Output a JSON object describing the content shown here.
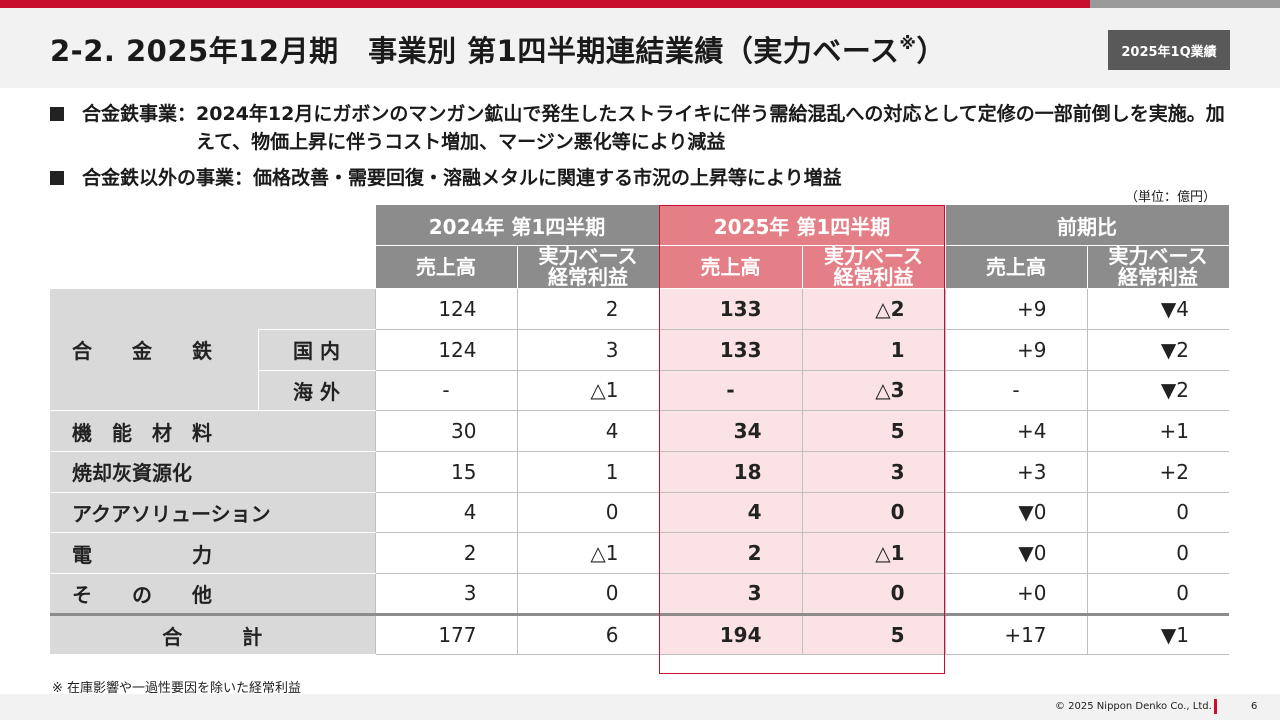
{
  "title": {
    "main": "2-2. 2025年12月期　事業別 第1四半期連結業績（実力ベース",
    "mark": "※",
    "close": "）"
  },
  "badge": "2025年1Q業績",
  "bullets": [
    {
      "label": "合金鉄事業：",
      "text": "2024年12月にガボンのマンガン鉱山で発生したストライキに伴う需給混乱への対応として定修の一部前倒しを実施。加えて、物価上昇に伴うコスト増加、マージン悪化等により減益"
    },
    {
      "label": "合金鉄以外の事業：",
      "text": "価格改善・需要回復・溶融メタルに関連する市況の上昇等により増益"
    }
  ],
  "unit": "（単位：億円）",
  "table": {
    "group_headers": [
      "2024年 第1四半期",
      "2025年 第1四半期",
      "前期比"
    ],
    "sub_headers": [
      "売上高",
      "実力ベース\n経常利益",
      "売上高",
      "実力ベース\n経常利益",
      "売上高",
      "実力ベース\n経常利益"
    ],
    "ferroalloy_label": "合　　金　　鉄",
    "rows": [
      {
        "sub": "",
        "values": [
          "124",
          "2",
          "133",
          "△2",
          "+9",
          "▼4"
        ]
      },
      {
        "sub": "国 内",
        "values": [
          "124",
          "3",
          "133",
          "1",
          "+9",
          "▼2"
        ]
      },
      {
        "sub": "海 外",
        "values": [
          "-",
          "△1",
          "-",
          "△3",
          "-",
          "▼2"
        ]
      },
      {
        "label": "機　能　材　料",
        "values": [
          "30",
          "4",
          "34",
          "5",
          "+4",
          "+1"
        ]
      },
      {
        "label": "焼却灰資源化",
        "values": [
          "15",
          "1",
          "18",
          "3",
          "+3",
          "+2"
        ]
      },
      {
        "label": "アクアソリューション",
        "values": [
          "4",
          "0",
          "4",
          "0",
          "▼0",
          "0"
        ]
      },
      {
        "label": "電　　　　　力",
        "values": [
          "2",
          "△1",
          "2",
          "△1",
          "▼0",
          "0"
        ]
      },
      {
        "label": "そ　　の　　他",
        "values": [
          "3",
          "0",
          "3",
          "0",
          "+0",
          "0"
        ]
      },
      {
        "label": "合　　　計",
        "values": [
          "177",
          "6",
          "194",
          "5",
          "+17",
          "▼1"
        ]
      }
    ]
  },
  "footnote": "※ 在庫影響や一過性要因を除いた経常利益",
  "footer": {
    "copyright": "© 2025 Nippon Denko Co., Ltd.",
    "page": "6"
  },
  "colors": {
    "accent_red": "#c8102e",
    "header_gray": "#8c8c8c",
    "highlight_header": "#e57f87",
    "highlight_cell": "#fbe3e5",
    "label_gray": "#d9d9d9"
  }
}
